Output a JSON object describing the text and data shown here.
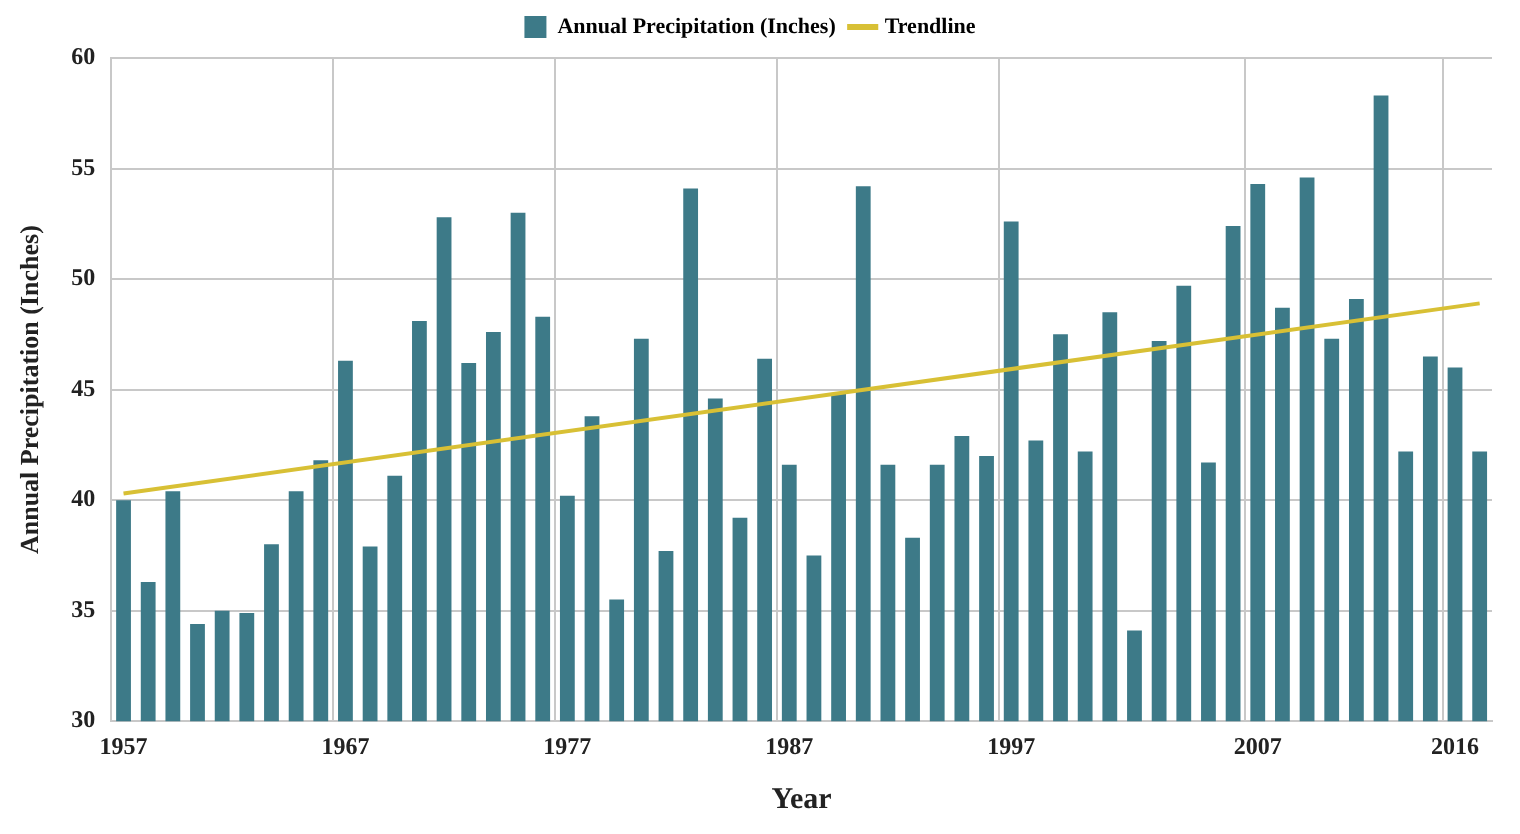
{
  "chart_data": {
    "type": "bar",
    "xlabel": "Year",
    "ylabel": "Annual Precipitation (Inches)",
    "categories": [
      "1957",
      null,
      null,
      null,
      null,
      null,
      null,
      null,
      null,
      "1967",
      null,
      null,
      null,
      null,
      null,
      null,
      null,
      null,
      "1977",
      null,
      null,
      null,
      null,
      null,
      null,
      null,
      null,
      "1987",
      null,
      null,
      null,
      null,
      null,
      null,
      null,
      null,
      "1997",
      null,
      null,
      null,
      null,
      null,
      null,
      null,
      null,
      null,
      "2007",
      null,
      null,
      null,
      null,
      null,
      null,
      null,
      "2016",
      null
    ],
    "series": [
      {
        "name": "Annual Precipitation (Inches)",
        "color": "#3d7a88",
        "values": [
          40.0,
          36.3,
          40.4,
          34.4,
          35.0,
          34.9,
          38.0,
          40.4,
          41.8,
          46.3,
          37.9,
          41.1,
          48.1,
          52.8,
          46.2,
          47.6,
          53.0,
          48.3,
          40.2,
          43.8,
          35.5,
          47.3,
          37.7,
          54.1,
          44.6,
          39.2,
          46.4,
          41.6,
          37.5,
          44.8,
          54.2,
          41.6,
          38.3,
          41.6,
          42.9,
          42.0,
          52.6,
          42.7,
          47.5,
          42.2,
          48.5,
          34.1,
          47.2,
          49.7,
          41.7,
          52.4,
          54.3,
          48.7,
          54.6,
          47.3,
          49.1,
          58.3,
          42.2,
          46.5,
          46.0,
          42.2
        ]
      },
      {
        "name": "Trendline",
        "type": "line",
        "color": "#d8c035",
        "values": [
          40.3,
          null,
          null,
          null,
          null,
          null,
          null,
          null,
          null,
          null,
          null,
          null,
          null,
          null,
          null,
          null,
          null,
          null,
          null,
          null,
          null,
          null,
          null,
          null,
          null,
          null,
          null,
          null,
          null,
          null,
          null,
          null,
          null,
          null,
          null,
          null,
          null,
          null,
          null,
          null,
          null,
          null,
          null,
          null,
          null,
          null,
          null,
          null,
          null,
          null,
          null,
          null,
          null,
          null,
          null,
          48.9
        ]
      }
    ],
    "ylim": [
      30,
      60
    ],
    "yticks": [
      30,
      35,
      40,
      45,
      50,
      55,
      60
    ],
    "grid": true,
    "legend": "top",
    "marker": "none"
  }
}
